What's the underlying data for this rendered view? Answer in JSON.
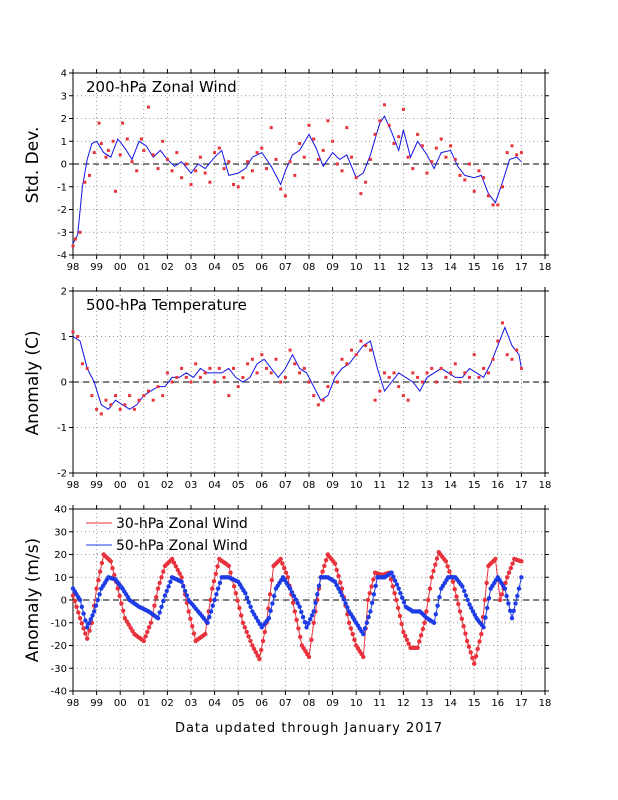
{
  "footer": "Data updated through January 2017",
  "colors": {
    "points": "#e8323c",
    "line_blue": "#1414e6",
    "points_blue": "#1e3ce6",
    "grid": "#9a9a9a",
    "zero_line": "#000000"
  },
  "x_tick_labels": [
    "98",
    "99",
    "00",
    "01",
    "02",
    "03",
    "04",
    "05",
    "06",
    "07",
    "08",
    "09",
    "10",
    "11",
    "12",
    "13",
    "14",
    "15",
    "16",
    "17",
    "18"
  ],
  "chart_data": [
    {
      "type": "line",
      "title": "200-hPa Zonal Wind",
      "ylabel": "Std. Dev.",
      "xlim": [
        1998,
        2018
      ],
      "ylim": [
        -4,
        4
      ],
      "yticks": [
        -4,
        -3,
        -2,
        -1,
        0,
        1,
        2,
        3,
        4
      ],
      "ytick_labels": [
        "-4",
        "-3",
        "-2",
        "-1",
        "0",
        "1",
        "2",
        "3",
        "4"
      ],
      "grid": true,
      "zero_line": true,
      "series": [
        {
          "role": "smoothed line",
          "color": "#1414e6",
          "x": [
            1998.0,
            1998.2,
            1998.4,
            1998.6,
            1998.8,
            1999.0,
            1999.3,
            1999.6,
            1999.9,
            2000.2,
            2000.5,
            2000.8,
            2001.1,
            2001.4,
            2001.7,
            2002.0,
            2002.3,
            2002.6,
            2003.0,
            2003.3,
            2003.6,
            2004.0,
            2004.3,
            2004.6,
            2005.0,
            2005.3,
            2005.6,
            2006.0,
            2006.4,
            2006.8,
            2007.0,
            2007.3,
            2007.6,
            2008.0,
            2008.3,
            2008.6,
            2009.0,
            2009.3,
            2009.6,
            2010.0,
            2010.3,
            2010.6,
            2011.0,
            2011.2,
            2011.5,
            2011.8,
            2012.0,
            2012.3,
            2012.6,
            2013.0,
            2013.3,
            2013.6,
            2014.0,
            2014.3,
            2014.6,
            2015.0,
            2015.3,
            2015.6,
            2015.9,
            2016.2,
            2016.5,
            2016.8,
            2017.0
          ],
          "y": [
            -3.5,
            -3.1,
            -1.0,
            0.2,
            0.9,
            1.0,
            0.5,
            0.3,
            1.1,
            0.7,
            0.2,
            1.0,
            0.8,
            0.3,
            0.6,
            0.2,
            -0.1,
            0.1,
            -0.4,
            0.0,
            -0.2,
            0.3,
            0.6,
            -0.5,
            -0.4,
            -0.2,
            0.3,
            0.5,
            -0.1,
            -0.9,
            -0.3,
            0.4,
            0.6,
            1.3,
            0.7,
            -0.1,
            0.5,
            0.2,
            0.4,
            -0.6,
            -0.4,
            0.4,
            1.8,
            2.1,
            1.4,
            0.6,
            1.5,
            0.3,
            1.0,
            0.4,
            -0.2,
            0.5,
            0.6,
            -0.1,
            -0.5,
            -0.6,
            -0.5,
            -1.3,
            -1.7,
            -0.8,
            0.2,
            0.3,
            0.1
          ]
        },
        {
          "role": "points",
          "color": "#e8323c",
          "x": [
            1998.0,
            1998.1,
            1998.3,
            1998.5,
            1998.7,
            1998.9,
            1999.1,
            1999.2,
            1999.4,
            1999.5,
            1999.7,
            1999.8,
            2000.0,
            2000.1,
            2000.3,
            2000.5,
            2000.7,
            2000.9,
            2001.0,
            2001.2,
            2001.4,
            2001.6,
            2001.8,
            2002.0,
            2002.2,
            2002.4,
            2002.6,
            2002.8,
            2003.0,
            2003.2,
            2003.4,
            2003.6,
            2003.8,
            2004.0,
            2004.2,
            2004.4,
            2004.6,
            2004.8,
            2005.0,
            2005.2,
            2005.4,
            2005.6,
            2005.8,
            2006.0,
            2006.2,
            2006.4,
            2006.6,
            2006.8,
            2007.0,
            2007.2,
            2007.4,
            2007.6,
            2007.8,
            2008.0,
            2008.2,
            2008.4,
            2008.6,
            2008.8,
            2009.0,
            2009.2,
            2009.4,
            2009.6,
            2009.8,
            2010.0,
            2010.2,
            2010.4,
            2010.6,
            2010.8,
            2011.0,
            2011.2,
            2011.4,
            2011.6,
            2011.8,
            2012.0,
            2012.2,
            2012.4,
            2012.6,
            2012.8,
            2013.0,
            2013.2,
            2013.4,
            2013.6,
            2013.8,
            2014.0,
            2014.2,
            2014.4,
            2014.6,
            2014.8,
            2015.0,
            2015.2,
            2015.4,
            2015.6,
            2015.8,
            2016.0,
            2016.2,
            2016.4,
            2016.6,
            2016.8,
            2017.0
          ],
          "y": [
            -3.6,
            -3.3,
            -3.0,
            -0.8,
            -0.5,
            0.5,
            1.8,
            0.9,
            0.3,
            0.6,
            1.0,
            -1.2,
            0.4,
            1.8,
            1.1,
            0.1,
            -0.3,
            1.1,
            0.6,
            2.5,
            0.4,
            -0.2,
            1.0,
            0.2,
            -0.3,
            0.5,
            -0.6,
            0.0,
            -0.9,
            -0.3,
            0.3,
            -0.4,
            -0.8,
            0.5,
            0.7,
            -0.2,
            0.1,
            -0.9,
            -1.0,
            -0.6,
            0.1,
            -0.3,
            0.5,
            0.7,
            -0.2,
            1.6,
            0.2,
            -1.1,
            -1.4,
            0.1,
            -0.5,
            0.9,
            0.3,
            1.7,
            1.1,
            0.2,
            0.6,
            1.9,
            1.0,
            0.0,
            -0.3,
            1.6,
            0.3,
            -0.6,
            -1.3,
            -0.8,
            0.2,
            1.3,
            1.9,
            2.6,
            1.7,
            0.9,
            1.2,
            2.4,
            0.3,
            -0.2,
            1.3,
            0.8,
            -0.4,
            0.1,
            0.7,
            1.1,
            0.3,
            0.8,
            0.2,
            -0.5,
            -0.7,
            0.0,
            -1.2,
            -0.3,
            -0.6,
            -1.4,
            -1.8,
            -1.8,
            -1.0,
            0.5,
            0.8,
            0.4,
            0.5
          ]
        }
      ]
    },
    {
      "type": "line",
      "title": "500-hPa Temperature",
      "ylabel": "Anomaly (C)",
      "xlim": [
        1998,
        2018
      ],
      "ylim": [
        -2,
        2
      ],
      "yticks": [
        -2,
        -1,
        0,
        1,
        2
      ],
      "ytick_labels": [
        "-2",
        "-1",
        "0",
        "1",
        "2"
      ],
      "grid": true,
      "zero_line": true,
      "series": [
        {
          "role": "smoothed line",
          "color": "#1414e6",
          "x": [
            1998.0,
            1998.3,
            1998.6,
            1998.9,
            1999.2,
            1999.5,
            1999.8,
            2000.1,
            2000.4,
            2000.7,
            2001.0,
            2001.3,
            2001.6,
            2001.9,
            2002.2,
            2002.5,
            2002.8,
            2003.1,
            2003.4,
            2003.7,
            2004.0,
            2004.3,
            2004.6,
            2004.9,
            2005.2,
            2005.5,
            2005.8,
            2006.1,
            2006.4,
            2006.7,
            2007.0,
            2007.3,
            2007.6,
            2007.9,
            2008.2,
            2008.5,
            2008.8,
            2009.1,
            2009.4,
            2009.7,
            2010.0,
            2010.3,
            2010.6,
            2010.9,
            2011.2,
            2011.5,
            2011.8,
            2012.1,
            2012.4,
            2012.7,
            2013.0,
            2013.3,
            2013.6,
            2013.9,
            2014.2,
            2014.5,
            2014.8,
            2015.1,
            2015.4,
            2015.7,
            2016.0,
            2016.3,
            2016.6,
            2016.9,
            2017.0
          ],
          "y": [
            1.0,
            0.9,
            0.3,
            0.0,
            -0.5,
            -0.6,
            -0.4,
            -0.5,
            -0.6,
            -0.5,
            -0.3,
            -0.2,
            -0.1,
            -0.1,
            0.1,
            0.1,
            0.2,
            0.1,
            0.3,
            0.2,
            0.2,
            0.2,
            0.3,
            0.1,
            0.0,
            0.1,
            0.4,
            0.5,
            0.3,
            0.1,
            0.3,
            0.6,
            0.3,
            0.2,
            -0.1,
            -0.4,
            -0.3,
            0.1,
            0.3,
            0.4,
            0.6,
            0.8,
            0.9,
            0.3,
            -0.2,
            0.0,
            0.2,
            0.1,
            0.0,
            -0.2,
            0.1,
            0.2,
            0.3,
            0.2,
            0.1,
            0.1,
            0.3,
            0.2,
            0.1,
            0.4,
            0.8,
            1.2,
            0.8,
            0.6,
            0.3
          ]
        },
        {
          "role": "points",
          "color": "#e8323c",
          "x": [
            1998.0,
            1998.2,
            1998.4,
            1998.6,
            1998.8,
            1999.0,
            1999.2,
            1999.4,
            1999.6,
            1999.8,
            2000.0,
            2000.2,
            2000.4,
            2000.6,
            2000.8,
            2001.0,
            2001.2,
            2001.4,
            2001.6,
            2001.8,
            2002.0,
            2002.2,
            2002.4,
            2002.6,
            2002.8,
            2003.0,
            2003.2,
            2003.4,
            2003.6,
            2003.8,
            2004.0,
            2004.2,
            2004.4,
            2004.6,
            2004.8,
            2005.0,
            2005.2,
            2005.4,
            2005.6,
            2005.8,
            2006.0,
            2006.2,
            2006.4,
            2006.6,
            2006.8,
            2007.0,
            2007.2,
            2007.4,
            2007.6,
            2007.8,
            2008.0,
            2008.2,
            2008.4,
            2008.6,
            2008.8,
            2009.0,
            2009.2,
            2009.4,
            2009.6,
            2009.8,
            2010.0,
            2010.2,
            2010.4,
            2010.6,
            2010.8,
            2011.0,
            2011.2,
            2011.4,
            2011.6,
            2011.8,
            2012.0,
            2012.2,
            2012.4,
            2012.6,
            2012.8,
            2013.0,
            2013.2,
            2013.4,
            2013.6,
            2013.8,
            2014.0,
            2014.2,
            2014.4,
            2014.6,
            2014.8,
            2015.0,
            2015.2,
            2015.4,
            2015.6,
            2015.8,
            2016.0,
            2016.2,
            2016.4,
            2016.6,
            2016.8,
            2017.0
          ],
          "y": [
            1.1,
            1.0,
            0.4,
            0.3,
            -0.3,
            -0.6,
            -0.7,
            -0.4,
            -0.5,
            -0.3,
            -0.6,
            -0.5,
            -0.3,
            -0.6,
            -0.4,
            -0.3,
            -0.2,
            -0.4,
            -0.1,
            -0.3,
            0.2,
            0.0,
            0.1,
            0.3,
            0.1,
            0.0,
            0.4,
            0.1,
            0.2,
            0.3,
            0.0,
            0.3,
            0.1,
            -0.3,
            0.3,
            -0.1,
            0.1,
            0.4,
            0.5,
            0.2,
            0.6,
            0.3,
            0.2,
            0.5,
            0.0,
            0.1,
            0.7,
            0.4,
            0.2,
            0.3,
            0.0,
            -0.3,
            -0.5,
            -0.4,
            -0.1,
            0.2,
            0.0,
            0.5,
            0.4,
            0.7,
            0.6,
            0.9,
            0.8,
            0.7,
            -0.4,
            -0.2,
            0.2,
            0.1,
            0.2,
            -0.1,
            -0.3,
            -0.4,
            0.2,
            0.1,
            0.0,
            0.2,
            0.3,
            0.0,
            0.3,
            0.1,
            0.2,
            0.4,
            0.0,
            0.2,
            0.1,
            0.6,
            0.1,
            0.3,
            0.2,
            0.5,
            0.9,
            1.3,
            0.6,
            0.5,
            0.7,
            0.3
          ]
        }
      ]
    },
    {
      "type": "line",
      "ylabel": "Anomaly (m/s)",
      "xlim": [
        1998,
        2018
      ],
      "ylim": [
        -40,
        40
      ],
      "yticks": [
        -40,
        -30,
        -20,
        -10,
        0,
        10,
        20,
        30,
        40
      ],
      "ytick_labels": [
        "-40",
        "-30",
        "-20",
        "-10",
        "0",
        "10",
        "20",
        "30",
        "40"
      ],
      "grid": true,
      "zero_line": true,
      "legend": "top-left",
      "series": [
        {
          "name": "30-hPa Zonal Wind",
          "color": "#e8323c",
          "x": [
            1998.0,
            1998.3,
            1998.6,
            1998.8,
            1999.0,
            1999.3,
            1999.6,
            1999.9,
            2000.2,
            2000.6,
            2001.0,
            2001.3,
            2001.6,
            2001.9,
            2002.2,
            2002.6,
            2002.9,
            2003.2,
            2003.6,
            2003.9,
            2004.2,
            2004.6,
            2004.9,
            2005.2,
            2005.6,
            2005.9,
            2006.2,
            2006.5,
            2006.8,
            2007.1,
            2007.4,
            2007.7,
            2008.0,
            2008.2,
            2008.5,
            2008.8,
            2009.1,
            2009.4,
            2009.7,
            2010.0,
            2010.3,
            2010.5,
            2010.8,
            2011.1,
            2011.4,
            2011.7,
            2012.0,
            2012.3,
            2012.6,
            2012.9,
            2013.2,
            2013.5,
            2013.8,
            2014.1,
            2014.4,
            2014.7,
            2015.0,
            2015.3,
            2015.6,
            2015.9,
            2016.1,
            2016.4,
            2016.7,
            2017.0
          ],
          "y": [
            2,
            -8,
            -17,
            -10,
            5,
            20,
            17,
            5,
            -8,
            -15,
            -18,
            -10,
            5,
            15,
            18,
            10,
            -5,
            -18,
            -15,
            5,
            18,
            15,
            3,
            -10,
            -20,
            -26,
            -10,
            15,
            18,
            10,
            -5,
            -20,
            -25,
            -10,
            10,
            20,
            16,
            5,
            -10,
            -20,
            -25,
            0,
            12,
            11,
            12,
            0,
            -14,
            -21,
            -21,
            -10,
            10,
            21,
            17,
            8,
            -5,
            -18,
            -28,
            -15,
            15,
            18,
            0,
            10,
            18,
            17
          ]
        },
        {
          "name": "50-hPa Zonal Wind",
          "color": "#1e3ce6",
          "x": [
            1998.0,
            1998.3,
            1998.6,
            1998.9,
            1999.2,
            1999.5,
            1999.8,
            2000.1,
            2000.4,
            2000.8,
            2001.2,
            2001.6,
            2001.9,
            2002.2,
            2002.6,
            2002.9,
            2003.3,
            2003.7,
            2004.0,
            2004.3,
            2004.6,
            2005.0,
            2005.3,
            2005.6,
            2006.0,
            2006.3,
            2006.6,
            2006.9,
            2007.2,
            2007.6,
            2007.9,
            2008.2,
            2008.5,
            2008.8,
            2009.1,
            2009.4,
            2009.7,
            2010.0,
            2010.3,
            2010.6,
            2010.9,
            2011.2,
            2011.5,
            2011.8,
            2012.1,
            2012.4,
            2012.7,
            2013.0,
            2013.3,
            2013.6,
            2013.9,
            2014.2,
            2014.5,
            2014.8,
            2015.1,
            2015.4,
            2015.7,
            2016.0,
            2016.3,
            2016.6,
            2016.9,
            2017.0
          ],
          "y": [
            5,
            0,
            -12,
            -5,
            5,
            10,
            9,
            5,
            0,
            -3,
            -5,
            -8,
            2,
            10,
            8,
            0,
            -5,
            -10,
            0,
            10,
            10,
            8,
            3,
            -5,
            -12,
            -8,
            5,
            10,
            5,
            -3,
            -12,
            -5,
            10,
            10,
            8,
            2,
            -5,
            -10,
            -15,
            -5,
            10,
            10,
            12,
            5,
            -3,
            -5,
            -5,
            -8,
            -10,
            5,
            10,
            10,
            6,
            -2,
            -8,
            -12,
            5,
            10,
            5,
            -8,
            5,
            10
          ]
        }
      ]
    }
  ]
}
